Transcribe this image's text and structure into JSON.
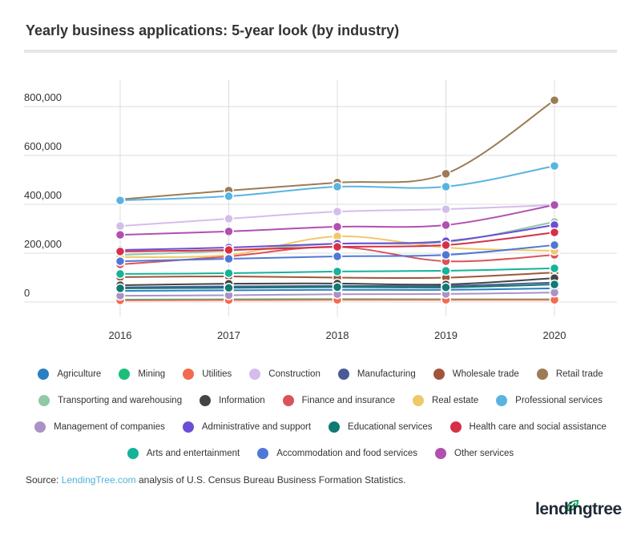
{
  "header": {
    "title": "Yearly business applications: 5-year look (by industry)"
  },
  "source": {
    "prefix": "Source: ",
    "link": "LendingTree.com",
    "suffix": " analysis of U.S. Census Bureau Business Formation Statistics."
  },
  "logo": {
    "text": "lendingtree",
    "color": "#0fa35a"
  },
  "chart_data": {
    "type": "line",
    "title": "Yearly business applications: 5-year look (by industry)",
    "x": [
      2016,
      2017,
      2018,
      2019,
      2020
    ],
    "xticks": [
      "2016",
      "2017",
      "2018",
      "2019",
      "2020"
    ],
    "yticks": [
      0,
      200000,
      400000,
      600000,
      800000
    ],
    "ytick_labels": [
      "0",
      "200,000",
      "400,000",
      "600,000",
      "800,000"
    ],
    "ylim": [
      0,
      800000
    ],
    "grid": true,
    "legend": "bottom",
    "series": [
      {
        "name": "Agriculture",
        "color": "#2a7fc1",
        "values": [
          46000,
          48000,
          50000,
          50000,
          56000
        ]
      },
      {
        "name": "Mining",
        "color": "#1bbf7a",
        "values": [
          10000,
          11000,
          12000,
          11000,
          11000
        ]
      },
      {
        "name": "Utilities",
        "color": "#f26b4f",
        "values": [
          7000,
          8000,
          9000,
          9000,
          9000
        ]
      },
      {
        "name": "Construction",
        "color": "#d4bdea",
        "values": [
          311000,
          341000,
          370000,
          380000,
          397000
        ]
      },
      {
        "name": "Manufacturing",
        "color": "#4a5a96",
        "values": [
          60000,
          64000,
          66000,
          66000,
          80000
        ]
      },
      {
        "name": "Wholesale trade",
        "color": "#a0553a",
        "values": [
          102000,
          105000,
          100000,
          100000,
          121000
        ]
      },
      {
        "name": "Retail trade",
        "color": "#9c7b55",
        "values": [
          420000,
          456000,
          489000,
          525000,
          826000
        ]
      },
      {
        "name": "Transporting and warehousing",
        "color": "#90c9a6",
        "values": [
          193000,
          210000,
          239000,
          245000,
          328000
        ]
      },
      {
        "name": "Information",
        "color": "#444444",
        "values": [
          69000,
          75000,
          76000,
          72000,
          98000
        ]
      },
      {
        "name": "Finance and insurance",
        "color": "#d9545a",
        "values": [
          154000,
          187000,
          226000,
          167000,
          193000
        ]
      },
      {
        "name": "Real estate",
        "color": "#efc86a",
        "values": [
          184000,
          193000,
          269000,
          223000,
          210000
        ]
      },
      {
        "name": "Professional services",
        "color": "#5ab4e2",
        "values": [
          416000,
          433000,
          472000,
          472000,
          557000
        ]
      },
      {
        "name": "Management of companies",
        "color": "#a993c6",
        "values": [
          26000,
          28000,
          32000,
          33000,
          39000
        ]
      },
      {
        "name": "Administrative and support",
        "color": "#6a4fd6",
        "values": [
          213000,
          223000,
          239000,
          249000,
          315000
        ]
      },
      {
        "name": "Educational services",
        "color": "#0f7a73",
        "values": [
          56000,
          58000,
          61000,
          60000,
          72000
        ]
      },
      {
        "name": "Health care and social assistance",
        "color": "#d63048",
        "values": [
          207000,
          213000,
          226000,
          233000,
          285000
        ]
      },
      {
        "name": "Arts and entertainment",
        "color": "#14b39a",
        "values": [
          115000,
          118000,
          125000,
          128000,
          138000
        ]
      },
      {
        "name": "Accommodation and food services",
        "color": "#4f78d6",
        "values": [
          167000,
          177000,
          187000,
          193000,
          233000
        ]
      },
      {
        "name": "Other services",
        "color": "#b150b0",
        "values": [
          275000,
          289000,
          308000,
          315000,
          397000
        ]
      }
    ]
  }
}
